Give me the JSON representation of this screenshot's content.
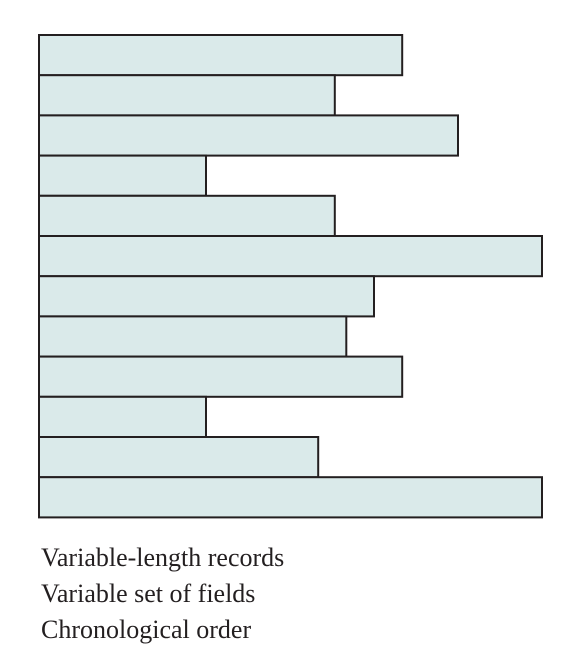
{
  "diagram": {
    "colors": {
      "bar_fill": "#daeaea",
      "bar_stroke": "#231f20",
      "text": "#231f20"
    },
    "records": [
      {
        "length": 0.722
      },
      {
        "length": 0.588
      },
      {
        "length": 0.833
      },
      {
        "length": 0.332
      },
      {
        "length": 0.588
      },
      {
        "length": 1.0
      },
      {
        "length": 0.666
      },
      {
        "length": 0.611
      },
      {
        "length": 0.722
      },
      {
        "length": 0.332
      },
      {
        "length": 0.555
      },
      {
        "length": 1.0
      }
    ]
  },
  "caption": {
    "line1": "Variable-length records",
    "line2": "Variable set of fields",
    "line3": "Chronological order"
  }
}
